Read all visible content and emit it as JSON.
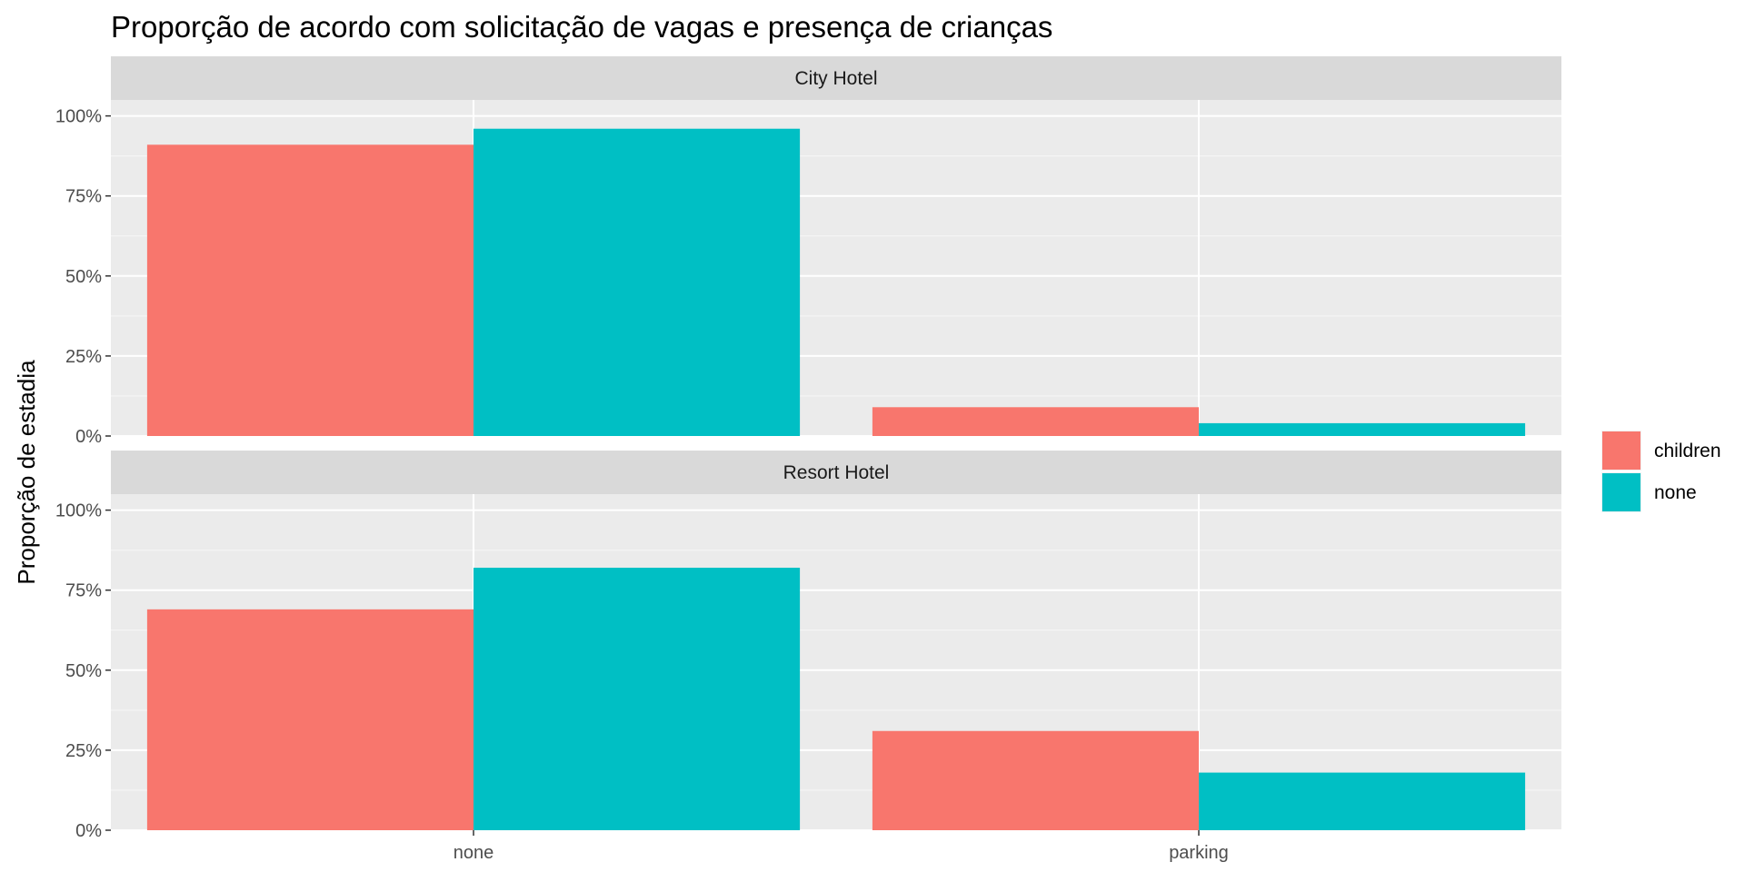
{
  "chart_data": {
    "type": "bar",
    "title": "Proporção de acordo com solicitação de vagas e presença de crianças",
    "ylabel": "Proporção de estadia",
    "xlabel": "",
    "categories": [
      "none",
      "parking"
    ],
    "y_ticks": [
      "0%",
      "25%",
      "50%",
      "75%",
      "100%"
    ],
    "ylim": [
      0,
      1.05
    ],
    "grid": true,
    "legend_position": "right",
    "legend": [
      {
        "name": "children",
        "color": "#F8766D"
      },
      {
        "name": "none",
        "color": "#00BFC4"
      }
    ],
    "panels": [
      {
        "strip": "City Hotel",
        "series": [
          {
            "name": "children",
            "color": "#F8766D",
            "values": [
              0.91,
              0.09
            ]
          },
          {
            "name": "none",
            "color": "#00BFC4",
            "values": [
              0.96,
              0.04
            ]
          }
        ]
      },
      {
        "strip": "Resort Hotel",
        "series": [
          {
            "name": "children",
            "color": "#F8766D",
            "values": [
              0.69,
              0.31
            ]
          },
          {
            "name": "none",
            "color": "#00BFC4",
            "values": [
              0.82,
              0.18
            ]
          }
        ]
      }
    ]
  }
}
